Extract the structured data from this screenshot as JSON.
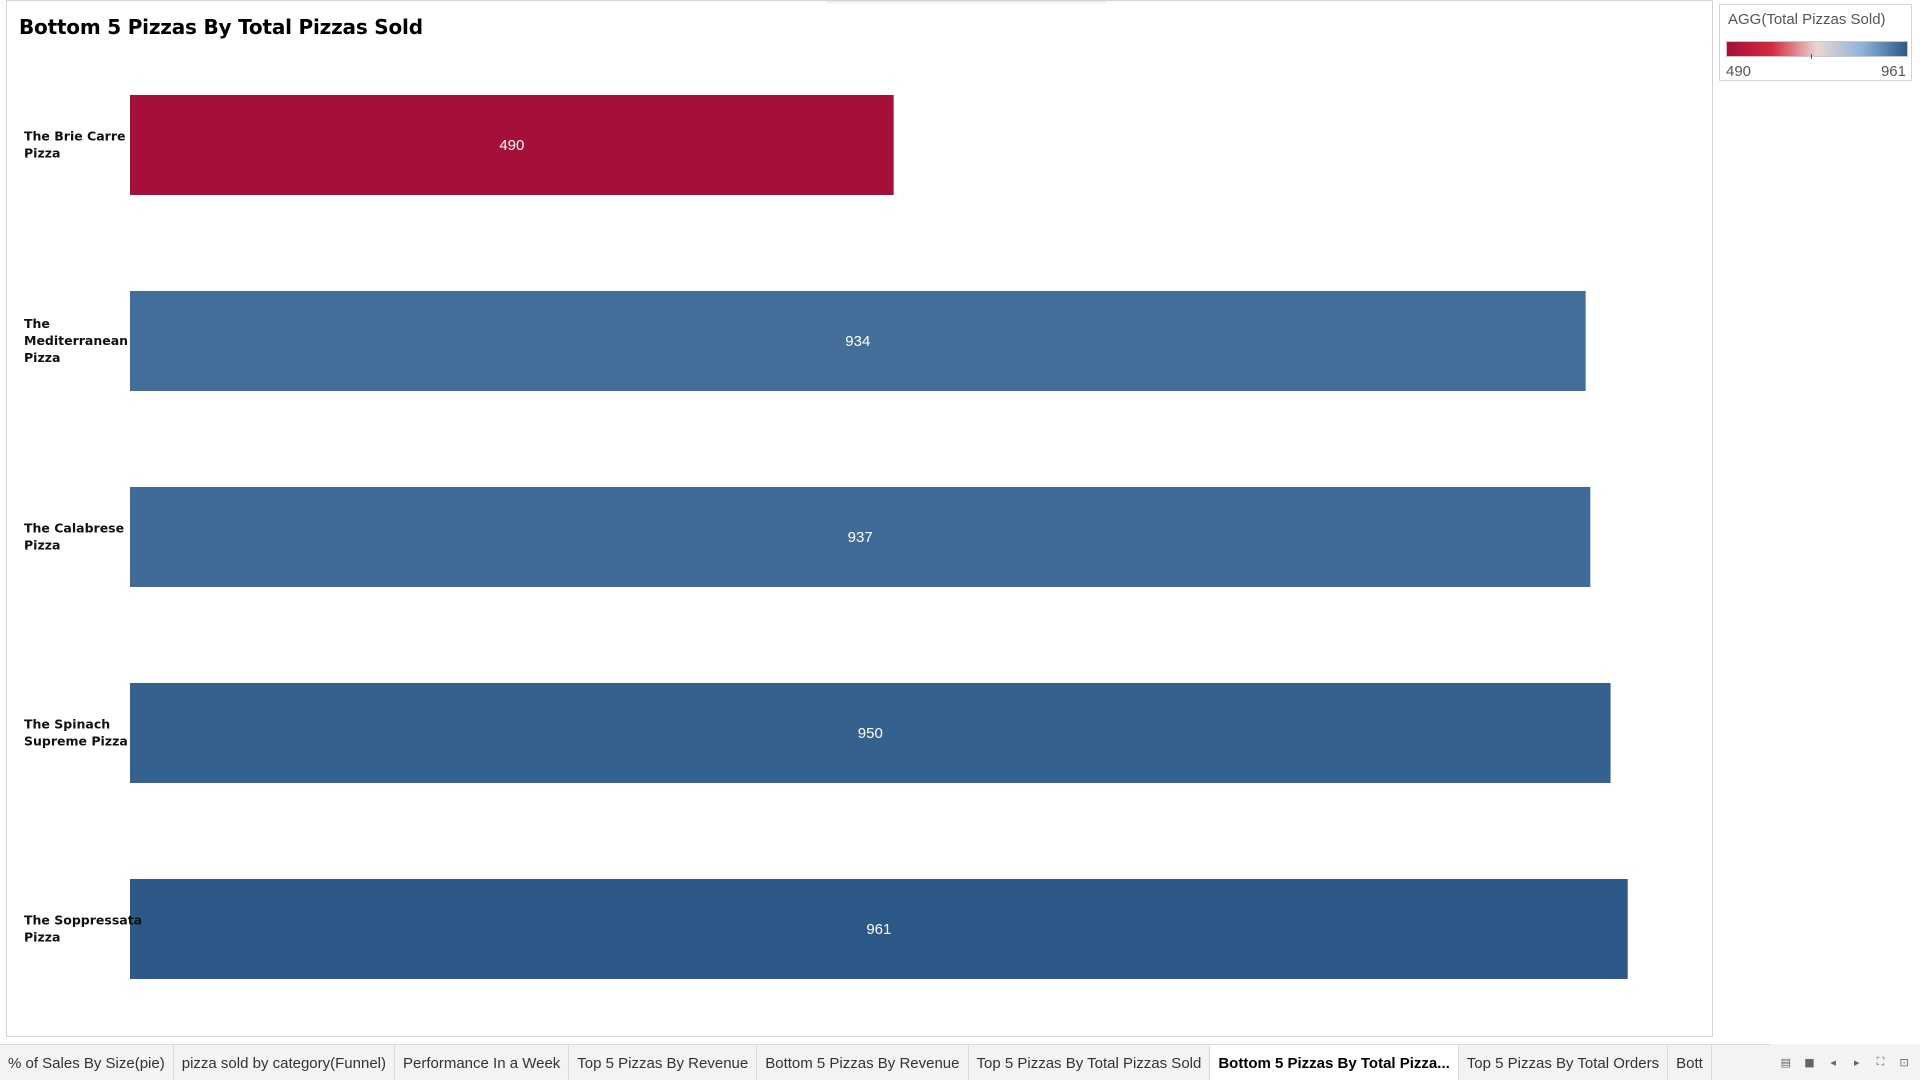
{
  "chart_data": {
    "type": "bar",
    "orientation": "horizontal",
    "title": "Bottom 5 Pizzas By Total Pizzas Sold",
    "categories": [
      [
        "The Brie Carre",
        "Pizza"
      ],
      [
        "The",
        "Mediterranean",
        "Pizza"
      ],
      [
        "The Calabrese",
        "Pizza"
      ],
      [
        "The Spinach",
        "Supreme Pizza"
      ],
      [
        "The Soppressata",
        "Pizza"
      ]
    ],
    "values": [
      490,
      934,
      937,
      950,
      961
    ],
    "data_labels": [
      "490",
      "934",
      "937",
      "950",
      "961"
    ],
    "xlim": [
      0,
      1000
    ],
    "grid": false,
    "color_scale": {
      "field": "AGG(Total Pizzas Sold)",
      "min": 490,
      "max": 961,
      "min_label": "490",
      "max_label": "961",
      "colors": [
        "#a50f38",
        "#d42a3e",
        "#e8d7d4",
        "#8fb3d9",
        "#2c5987"
      ]
    }
  },
  "legend": {
    "title": "AGG(Total Pizzas Sold)",
    "min_label": "490",
    "max_label": "961"
  },
  "tabs": [
    {
      "label": "% of Sales By Size(pie)",
      "active": false
    },
    {
      "label": "pizza sold by category(Funnel)",
      "active": false
    },
    {
      "label": "Performance In a Week",
      "active": false
    },
    {
      "label": "Top 5 Pizzas By Revenue",
      "active": false
    },
    {
      "label": "Bottom 5 Pizzas By Revenue",
      "active": false
    },
    {
      "label": "Top 5 Pizzas By Total Pizzas Sold",
      "active": false
    },
    {
      "label": "Bottom 5 Pizzas By Total Pizza...",
      "active": true
    },
    {
      "label": "Top 5 Pizzas By Total Orders",
      "active": false
    },
    {
      "label": "Bott",
      "active": false
    }
  ],
  "tab_controls": {
    "icons": [
      "filmstrip-icon",
      "single-sheet-icon",
      "scroll-left-icon",
      "scroll-right-icon",
      "fullscreen-icon",
      "presentation-icon"
    ],
    "glyphs": [
      "▤",
      "■",
      "◂",
      "▸",
      "⛶",
      "⊡"
    ]
  }
}
